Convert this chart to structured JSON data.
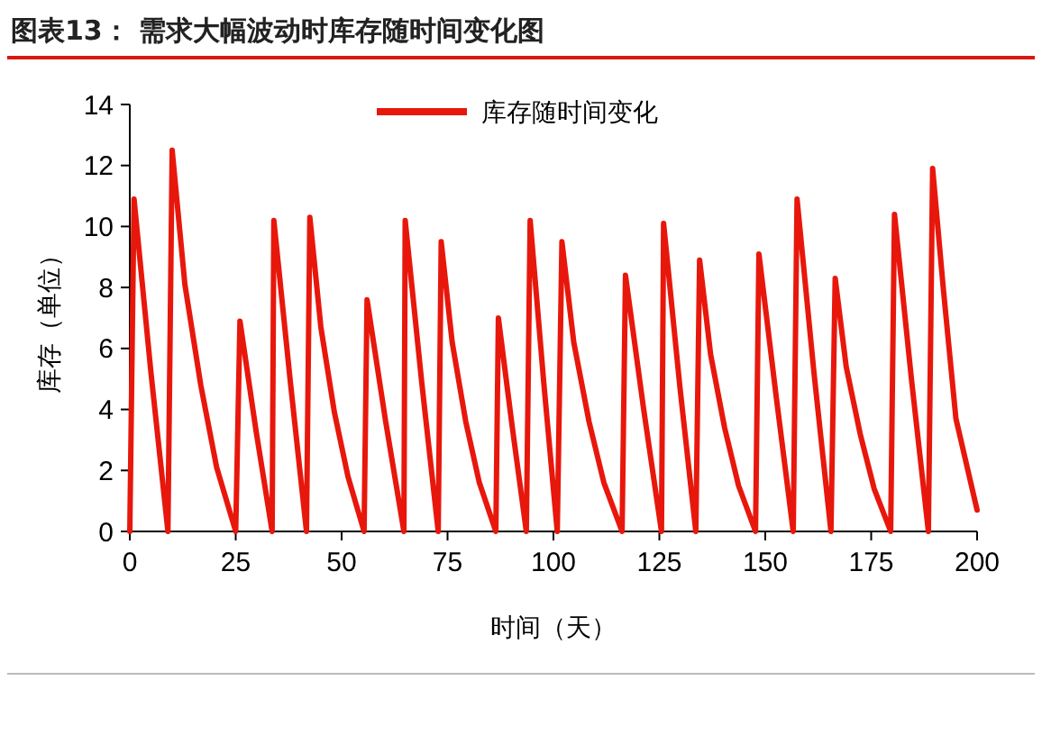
{
  "chart_data": {
    "type": "line",
    "title": "图表13：  需求大幅波动时库存随时间变化图",
    "xlabel": "时间（天）",
    "ylabel": "库存（单位）",
    "xlim": [
      0,
      200
    ],
    "xticks": [
      0,
      25,
      50,
      75,
      100,
      125,
      150,
      175,
      200
    ],
    "ylim": [
      0,
      14
    ],
    "yticks": [
      0,
      2,
      4,
      6,
      8,
      10,
      12,
      14
    ],
    "grid": false,
    "legend": "top",
    "marker": "none",
    "line_style": "solid",
    "series": [
      {
        "name": "库存随时间变化",
        "color": "#e8170c",
        "x": [
          0,
          1,
          5,
          9,
          10,
          13,
          16.75,
          20.5,
          25,
          26,
          29.8,
          33.6,
          34,
          37.9,
          41.7,
          42.5,
          45.1,
          48.3,
          51.5,
          55.3,
          56,
          60.4,
          64.7,
          65,
          68.9,
          72.8,
          73.5,
          76.1,
          79.3,
          82.5,
          86.4,
          87,
          90.3,
          93.6,
          94.5,
          97.7,
          100.9,
          102,
          104.8,
          108.4,
          111.9,
          116.2,
          117,
          121.3,
          125.5,
          126,
          129.8,
          133.6,
          134.5,
          137.1,
          140.4,
          143.7,
          147.7,
          148.5,
          152.6,
          156.6,
          157.5,
          161.5,
          165.5,
          166.5,
          169.1,
          172.4,
          175.7,
          179.6,
          180.5,
          184.5,
          188.5,
          189.5,
          192,
          195,
          200
        ],
        "values": [
          0,
          10.9,
          5.2,
          0,
          12.5,
          8.1,
          4.8,
          2.1,
          0,
          6.9,
          3.3,
          0,
          10.2,
          4.9,
          0,
          10.3,
          6.7,
          3.9,
          1.8,
          0,
          7.6,
          3.6,
          0,
          10.2,
          4.9,
          0,
          9.5,
          6.2,
          3.6,
          1.6,
          0,
          7.0,
          3.4,
          0,
          10.2,
          4.9,
          0,
          9.5,
          6.2,
          3.6,
          1.6,
          0,
          8.4,
          4.0,
          0,
          10.1,
          4.8,
          0,
          8.9,
          5.8,
          3.4,
          1.5,
          0,
          9.1,
          4.4,
          0,
          10.9,
          5.2,
          0,
          8.3,
          5.4,
          3.2,
          1.4,
          0,
          10.4,
          5.0,
          0,
          11.9,
          8.0,
          3.7,
          0.7
        ]
      }
    ]
  }
}
